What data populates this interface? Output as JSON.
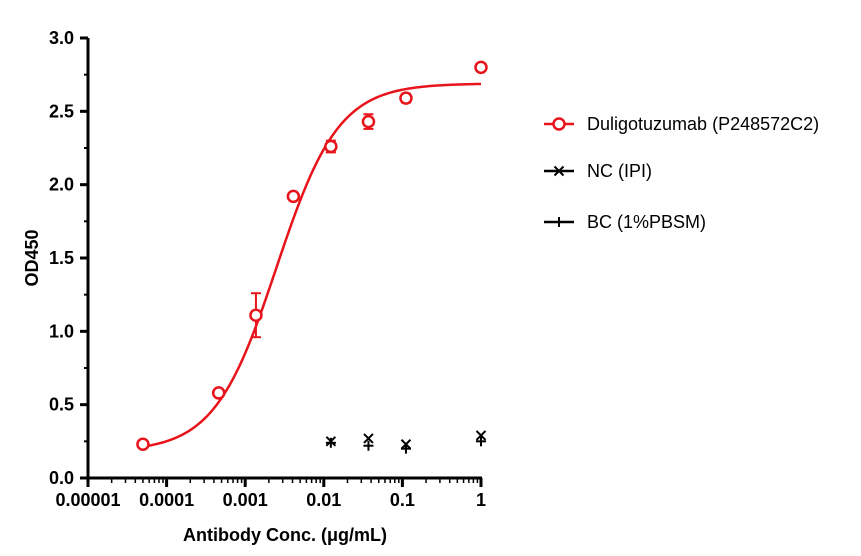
{
  "chart_data": {
    "type": "scatter",
    "xlabel": "Antibody Conc. (μg/mL)",
    "ylabel": "OD450",
    "xscale": "log",
    "xlim": [
      1e-05,
      1
    ],
    "ylim": [
      0,
      3.0
    ],
    "x_ticks": [
      1e-05,
      0.0001,
      0.001,
      0.01,
      0.1,
      1
    ],
    "x_tick_labels": [
      "0.00001",
      "0.0001",
      "0.001",
      "0.01",
      "0.1",
      "1"
    ],
    "y_ticks": [
      0,
      0.5,
      1.0,
      1.5,
      2.0,
      2.5,
      3.0
    ],
    "y_tick_labels": [
      "0.0",
      "0.5",
      "1.0",
      "1.5",
      "2.0",
      "2.5",
      "3.0"
    ],
    "grid": false,
    "legend_position": "right",
    "series": [
      {
        "name": "Duligotuzumab (P248572C2)",
        "color": "#e8141b",
        "marker": "open-circle",
        "x": [
          5e-05,
          0.00046,
          0.00137,
          0.0041,
          0.0123,
          0.037,
          0.111,
          1
        ],
        "y": [
          0.23,
          0.58,
          1.11,
          1.92,
          2.26,
          2.43,
          2.59,
          2.8
        ],
        "error": [
          0,
          0,
          0.15,
          0,
          0.04,
          0.05,
          0.03,
          0
        ],
        "fit": {
          "model": "4PL",
          "bottom": 0.18,
          "top": 2.69,
          "ec50": 0.0025,
          "hill": 1.1
        }
      },
      {
        "name": "NC (IPI)",
        "color": "#000000",
        "marker": "x",
        "x": [
          0.0123,
          0.037,
          0.111,
          1
        ],
        "y": [
          0.25,
          0.27,
          0.23,
          0.29
        ],
        "error": [
          0,
          0,
          0,
          0
        ]
      },
      {
        "name": "BC (1%PBSM)",
        "color": "#000000",
        "marker": "plus",
        "x": [
          0.0123,
          0.037,
          0.111,
          1
        ],
        "y": [
          0.24,
          0.22,
          0.2,
          0.25
        ],
        "error": [
          0,
          0,
          0,
          0
        ]
      }
    ]
  }
}
